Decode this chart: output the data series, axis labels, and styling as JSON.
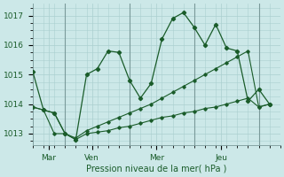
{
  "bg_color": "#cce8e8",
  "grid_color": "#aacfcf",
  "line_color": "#1a5c2a",
  "title": "Pression niveau de la mer( hPa )",
  "ylabel_values": [
    1013,
    1014,
    1015,
    1016,
    1017
  ],
  "ylim": [
    1012.6,
    1017.4
  ],
  "xlim": [
    0,
    23
  ],
  "x_ticks": [
    1.5,
    5.5,
    11.5,
    17.5
  ],
  "x_tick_labels": [
    "Mar",
    "Ven",
    "Mer",
    "Jeu"
  ],
  "vlines": [
    3,
    9,
    15,
    21
  ],
  "series1_x": [
    0,
    1,
    2,
    3,
    4,
    5,
    6,
    7,
    8,
    9,
    10,
    11,
    12,
    13,
    14,
    15,
    16,
    17,
    18,
    19,
    20,
    21,
    22
  ],
  "series1_y": [
    1015.1,
    1013.8,
    1013.7,
    1013.0,
    1012.8,
    1015.0,
    1015.2,
    1015.8,
    1015.75,
    1014.8,
    1014.2,
    1014.7,
    1016.2,
    1016.9,
    1017.1,
    1016.6,
    1016.0,
    1016.7,
    1015.9,
    1015.8,
    1014.1,
    1014.5,
    1014.0
  ],
  "series2_x": [
    0,
    1,
    2,
    3,
    4,
    5,
    6,
    7,
    8,
    9,
    10,
    11,
    12,
    13,
    14,
    15,
    16,
    17,
    18,
    19,
    20,
    21,
    22
  ],
  "series2_y": [
    1013.9,
    1013.8,
    1013.7,
    1013.0,
    1012.85,
    1013.1,
    1013.25,
    1013.4,
    1013.55,
    1013.7,
    1013.85,
    1014.0,
    1014.2,
    1014.4,
    1014.6,
    1014.8,
    1015.0,
    1015.2,
    1015.4,
    1015.6,
    1015.8,
    1013.9,
    1014.0
  ],
  "series3_x": [
    0,
    1,
    2,
    3,
    4,
    5,
    6,
    7,
    8,
    9,
    10,
    11,
    12,
    13,
    14,
    15,
    16,
    17,
    18,
    19,
    20,
    21,
    22
  ],
  "series3_y": [
    1013.9,
    1013.8,
    1013.0,
    1013.0,
    1012.8,
    1013.0,
    1013.05,
    1013.1,
    1013.2,
    1013.25,
    1013.35,
    1013.45,
    1013.55,
    1013.6,
    1013.7,
    1013.75,
    1013.85,
    1013.9,
    1014.0,
    1014.1,
    1014.2,
    1013.9,
    1014.0
  ]
}
